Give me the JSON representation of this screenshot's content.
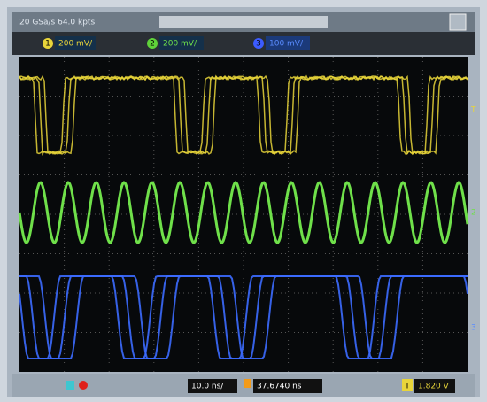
{
  "header": {
    "sample_info": "20 GSa/s   64.0 kpts"
  },
  "channels": [
    {
      "number": "1",
      "scale": "200 mV/"
    },
    {
      "number": "2",
      "scale": "200 mV/"
    },
    {
      "number": "3",
      "scale": "100 mV/"
    }
  ],
  "markers": [
    "T",
    "2",
    "3"
  ],
  "footer": {
    "timebase": "10.0 ns/",
    "delay": "37.6740 ns",
    "trigger_label": "T",
    "trigger_level": "1.820 V"
  }
}
